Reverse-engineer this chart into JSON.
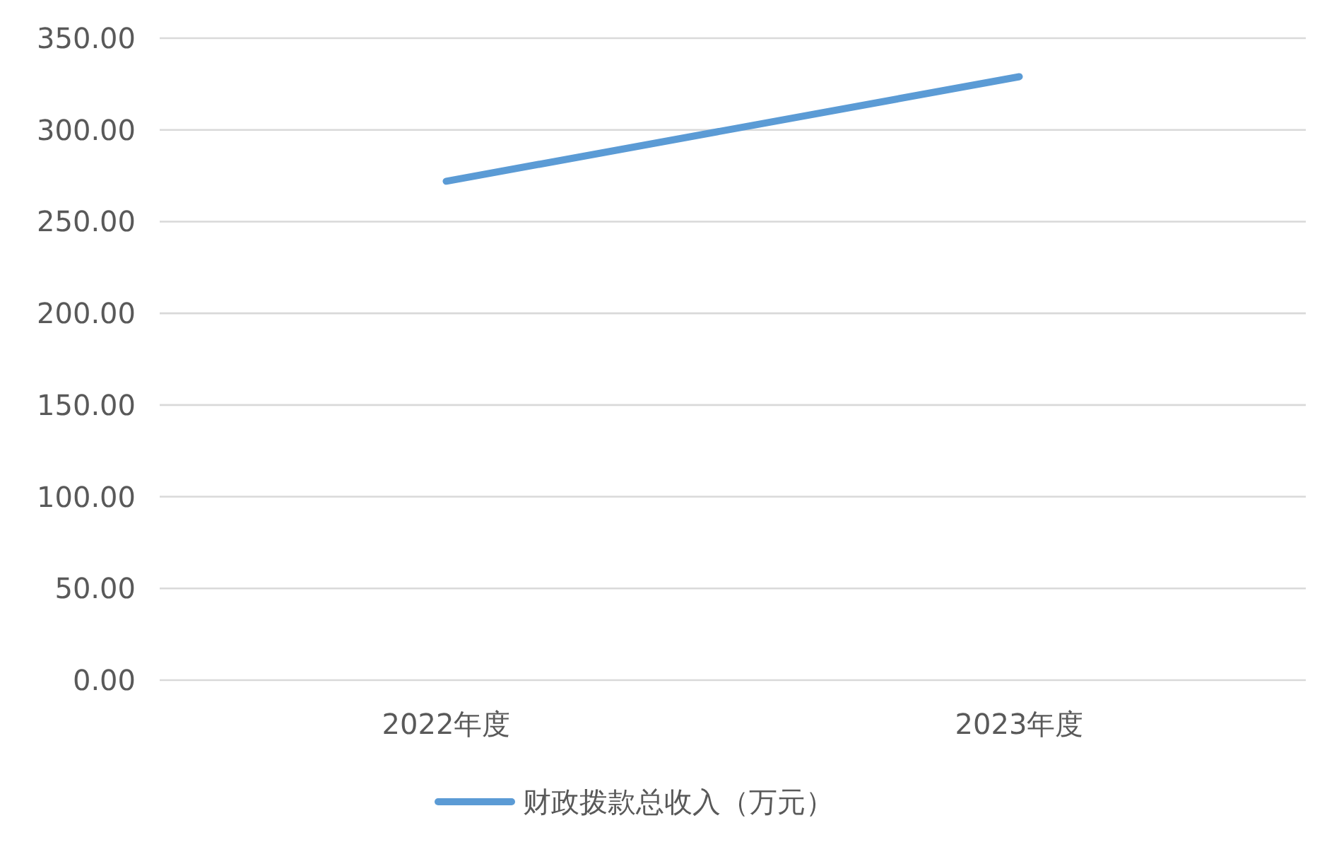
{
  "chart_data": {
    "type": "line",
    "categories": [
      "2022年度",
      "2023年度"
    ],
    "series": [
      {
        "name": "财政拨款总收入（万元）",
        "color": "#5b9bd5",
        "values": [
          272,
          329
        ]
      }
    ],
    "ylim": [
      0,
      350
    ],
    "yticks": [
      {
        "value": 0,
        "label": "0.00"
      },
      {
        "value": 50,
        "label": "50.00"
      },
      {
        "value": 100,
        "label": "100.00"
      },
      {
        "value": 150,
        "label": "150.00"
      },
      {
        "value": 200,
        "label": "200.00"
      },
      {
        "value": 250,
        "label": "250.00"
      },
      {
        "value": 300,
        "label": "300.00"
      },
      {
        "value": 350,
        "label": "350.00"
      }
    ],
    "grid": "y",
    "legend": "bottom",
    "marker": "none",
    "line_style": "solid"
  }
}
